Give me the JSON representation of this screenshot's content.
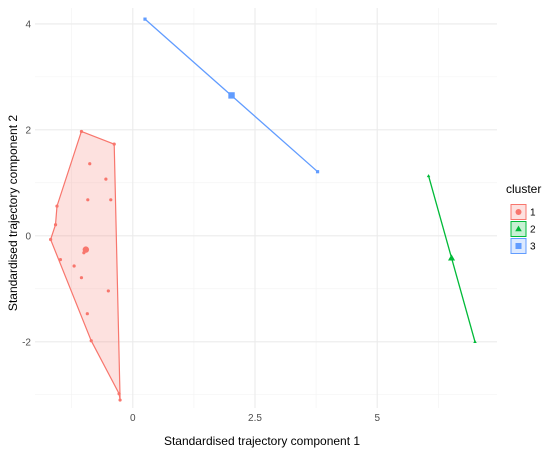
{
  "chart_data": {
    "type": "scatter",
    "title": "",
    "xlabel": "Standardised trajectory component 1",
    "ylabel": "Standardised trajectory component 2",
    "xlim": [
      -2.0,
      7.45
    ],
    "ylim": [
      -3.25,
      4.3
    ],
    "x_ticks": [
      0,
      2.5,
      5
    ],
    "x_tick_labels": [
      "0",
      "2.5",
      "5"
    ],
    "y_ticks": [
      -2,
      0,
      2,
      4
    ],
    "y_tick_labels": [
      "-2",
      "0",
      "2",
      "4"
    ],
    "grid": true,
    "legend": {
      "title": "cluster",
      "position": "right"
    },
    "series": [
      {
        "name": "1",
        "color": "#F8766D",
        "marker": "circle",
        "points": [
          [
            -1.05,
            1.97
          ],
          [
            -0.38,
            1.73
          ],
          [
            -0.55,
            1.07
          ],
          [
            -0.88,
            1.36
          ],
          [
            -0.92,
            0.68
          ],
          [
            -0.45,
            0.68
          ],
          [
            -1.55,
            0.56
          ],
          [
            -1.58,
            0.21
          ],
          [
            -1.68,
            -0.07
          ],
          [
            -1.48,
            -0.45
          ],
          [
            -0.95,
            -0.27
          ],
          [
            -1.0,
            -0.32
          ],
          [
            -1.2,
            -0.57
          ],
          [
            -1.05,
            -0.79
          ],
          [
            -0.5,
            -1.04
          ],
          [
            -0.93,
            -1.47
          ],
          [
            -0.85,
            -1.98
          ],
          [
            -0.28,
            -2.98
          ],
          [
            -0.26,
            -3.1
          ]
        ],
        "centroid": [
          -0.96,
          -0.26
        ],
        "hull": [
          [
            -1.05,
            1.97
          ],
          [
            -0.38,
            1.73
          ],
          [
            -0.26,
            -3.1
          ],
          [
            -0.28,
            -2.98
          ],
          [
            -0.85,
            -1.98
          ],
          [
            -1.68,
            -0.07
          ],
          [
            -1.58,
            0.21
          ],
          [
            -1.55,
            0.56
          ]
        ]
      },
      {
        "name": "2",
        "color": "#00BA38",
        "marker": "triangle",
        "points": [
          [
            6.05,
            1.13
          ],
          [
            7.0,
            -2.0
          ]
        ],
        "centroid": [
          6.52,
          -0.42
        ],
        "hull": [
          [
            6.05,
            1.13
          ],
          [
            7.0,
            -2.0
          ]
        ]
      },
      {
        "name": "3",
        "color": "#619CFF",
        "marker": "square",
        "points": [
          [
            0.25,
            4.09
          ],
          [
            3.78,
            1.21
          ]
        ],
        "centroid": [
          2.02,
          2.65
        ],
        "hull": [
          [
            0.25,
            4.09
          ],
          [
            3.78,
            1.21
          ]
        ]
      }
    ]
  }
}
